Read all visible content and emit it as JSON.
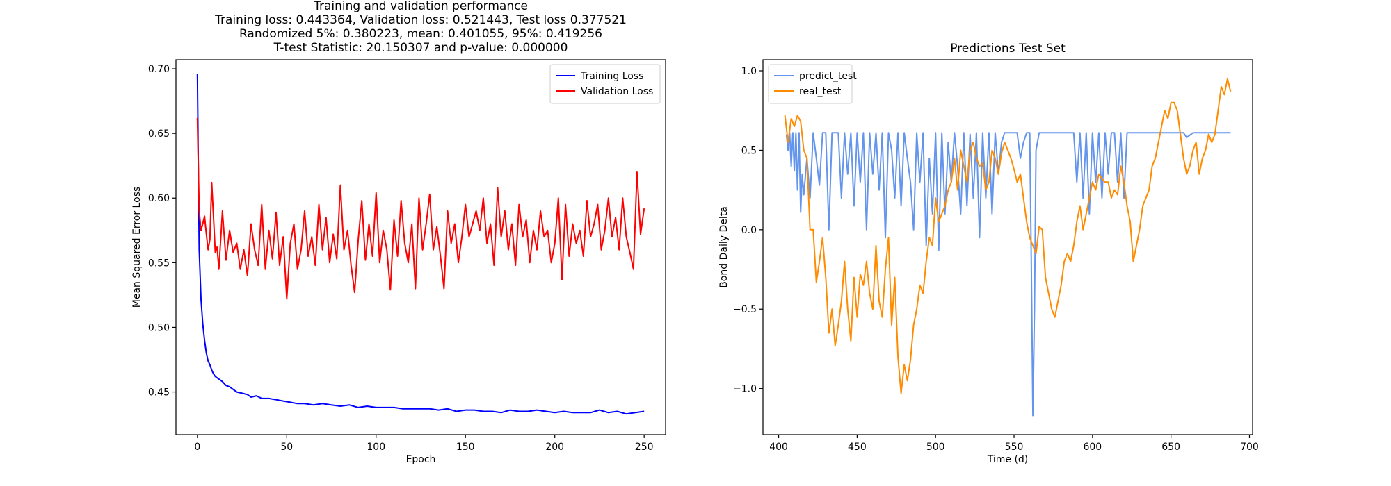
{
  "chart_data": [
    {
      "type": "line",
      "title_lines": [
        "Training and validation performance",
        "Training loss: 0.443364, Validation loss: 0.521443, Test loss 0.377521",
        "Randomized 5%: 0.380223, mean: 0.401055, 95%: 0.419256",
        "T-test Statistic: 20.150307 and p-value: 0.000000"
      ],
      "xlabel": "Epoch",
      "ylabel": "Mean Squared Error Loss",
      "xlim": [
        -12,
        262
      ],
      "ylim": [
        0.417,
        0.707
      ],
      "xticks": [
        0,
        50,
        100,
        150,
        200,
        250
      ],
      "xtick_labels": [
        "0",
        "50",
        "100",
        "150",
        "200",
        "250"
      ],
      "yticks": [
        0.45,
        0.5,
        0.55,
        0.6,
        0.65,
        0.7
      ],
      "ytick_labels": [
        "0.45",
        "0.50",
        "0.55",
        "0.60",
        "0.65",
        "0.70"
      ],
      "legend_position": "top-right",
      "series": [
        {
          "name": "Training Loss",
          "color": "#0000ff",
          "x": [
            0,
            1,
            2,
            3,
            4,
            5,
            6,
            7,
            8,
            9,
            10,
            12,
            14,
            16,
            18,
            20,
            22,
            25,
            28,
            30,
            33,
            36,
            40,
            44,
            48,
            52,
            56,
            60,
            65,
            70,
            75,
            80,
            85,
            90,
            95,
            100,
            105,
            110,
            115,
            120,
            125,
            130,
            135,
            140,
            145,
            150,
            155,
            160,
            165,
            170,
            175,
            180,
            185,
            190,
            195,
            200,
            205,
            210,
            215,
            220,
            225,
            230,
            235,
            240,
            245,
            250
          ],
          "y": [
            0.696,
            0.56,
            0.522,
            0.503,
            0.49,
            0.48,
            0.474,
            0.471,
            0.467,
            0.464,
            0.462,
            0.46,
            0.458,
            0.455,
            0.454,
            0.452,
            0.45,
            0.449,
            0.448,
            0.446,
            0.447,
            0.445,
            0.445,
            0.444,
            0.443,
            0.442,
            0.441,
            0.441,
            0.44,
            0.441,
            0.44,
            0.439,
            0.44,
            0.438,
            0.439,
            0.438,
            0.438,
            0.438,
            0.437,
            0.437,
            0.437,
            0.437,
            0.436,
            0.437,
            0.435,
            0.436,
            0.436,
            0.435,
            0.435,
            0.434,
            0.436,
            0.435,
            0.435,
            0.436,
            0.435,
            0.434,
            0.435,
            0.434,
            0.434,
            0.434,
            0.436,
            0.434,
            0.435,
            0.433,
            0.434,
            0.435
          ]
        },
        {
          "name": "Validation Loss",
          "color": "#ff0000",
          "x": [
            0,
            1,
            2,
            3,
            4,
            5,
            6,
            7,
            8,
            9,
            10,
            11,
            12,
            14,
            16,
            18,
            20,
            22,
            24,
            26,
            28,
            30,
            32,
            34,
            36,
            38,
            40,
            42,
            44,
            46,
            48,
            50,
            52,
            54,
            56,
            58,
            60,
            62,
            64,
            66,
            68,
            70,
            72,
            74,
            76,
            78,
            80,
            82,
            84,
            86,
            88,
            90,
            92,
            94,
            96,
            98,
            100,
            102,
            104,
            106,
            108,
            110,
            112,
            114,
            116,
            118,
            120,
            122,
            124,
            126,
            128,
            130,
            132,
            134,
            136,
            138,
            140,
            142,
            144,
            146,
            148,
            150,
            152,
            154,
            156,
            158,
            160,
            162,
            164,
            166,
            168,
            170,
            172,
            174,
            176,
            178,
            180,
            182,
            184,
            186,
            188,
            190,
            192,
            194,
            196,
            198,
            200,
            202,
            204,
            206,
            208,
            210,
            212,
            214,
            216,
            218,
            220,
            222,
            224,
            226,
            228,
            230,
            232,
            234,
            236,
            238,
            240,
            242,
            244,
            246,
            248,
            250
          ],
          "y": [
            0.662,
            0.59,
            0.575,
            0.58,
            0.586,
            0.572,
            0.56,
            0.568,
            0.612,
            0.585,
            0.558,
            0.562,
            0.545,
            0.59,
            0.552,
            0.575,
            0.558,
            0.565,
            0.545,
            0.56,
            0.54,
            0.58,
            0.56,
            0.548,
            0.595,
            0.545,
            0.575,
            0.553,
            0.589,
            0.548,
            0.57,
            0.522,
            0.565,
            0.58,
            0.545,
            0.56,
            0.59,
            0.555,
            0.57,
            0.548,
            0.595,
            0.56,
            0.585,
            0.55,
            0.572,
            0.553,
            0.61,
            0.56,
            0.575,
            0.548,
            0.527,
            0.568,
            0.598,
            0.552,
            0.58,
            0.555,
            0.604,
            0.55,
            0.575,
            0.56,
            0.529,
            0.583,
            0.555,
            0.598,
            0.565,
            0.55,
            0.58,
            0.53,
            0.6,
            0.56,
            0.58,
            0.603,
            0.56,
            0.578,
            0.555,
            0.53,
            0.59,
            0.565,
            0.58,
            0.55,
            0.57,
            0.595,
            0.57,
            0.58,
            0.59,
            0.575,
            0.6,
            0.565,
            0.58,
            0.548,
            0.608,
            0.57,
            0.59,
            0.56,
            0.58,
            0.548,
            0.595,
            0.57,
            0.583,
            0.55,
            0.575,
            0.56,
            0.59,
            0.57,
            0.575,
            0.55,
            0.565,
            0.6,
            0.537,
            0.595,
            0.555,
            0.58,
            0.565,
            0.575,
            0.555,
            0.598,
            0.57,
            0.58,
            0.595,
            0.56,
            0.575,
            0.6,
            0.57,
            0.585,
            0.56,
            0.6,
            0.57,
            0.558,
            0.545,
            0.62,
            0.572,
            0.592
          ]
        }
      ]
    },
    {
      "type": "line",
      "title": "Predictions Test Set",
      "xlabel": "Time (d)",
      "ylabel": "Bond Daily Delta",
      "xlim": [
        390,
        702
      ],
      "ylim": [
        -1.29,
        1.07
      ],
      "xticks": [
        400,
        450,
        500,
        550,
        600,
        650,
        700
      ],
      "xtick_labels": [
        "400",
        "450",
        "500",
        "550",
        "600",
        "650",
        "700"
      ],
      "yticks": [
        -1.0,
        -0.5,
        0.0,
        0.5,
        1.0
      ],
      "ytick_labels": [
        "−1.0",
        "−0.5",
        "0.0",
        "0.5",
        "1.0"
      ],
      "legend_position": "top-left",
      "series": [
        {
          "name": "predict_test",
          "color": "#6495ed",
          "x": [
            405,
            406,
            407,
            408,
            409,
            410,
            411,
            412,
            413,
            414,
            415,
            416,
            418,
            420,
            422,
            424,
            426,
            428,
            430,
            432,
            434,
            436,
            438,
            440,
            442,
            444,
            446,
            448,
            450,
            452,
            454,
            456,
            458,
            460,
            462,
            464,
            466,
            468,
            470,
            472,
            474,
            476,
            478,
            480,
            482,
            484,
            486,
            488,
            490,
            492,
            494,
            496,
            498,
            500,
            502,
            504,
            506,
            508,
            510,
            512,
            514,
            516,
            518,
            520,
            522,
            524,
            526,
            528,
            530,
            532,
            534,
            536,
            538,
            540,
            542,
            544,
            546,
            548,
            550,
            552,
            554,
            556,
            558,
            560,
            561,
            562,
            563,
            564,
            566,
            568,
            570,
            572,
            574,
            576,
            580,
            584,
            588,
            590,
            592,
            594,
            596,
            598,
            600,
            602,
            604,
            606,
            608,
            610,
            612,
            614,
            616,
            618,
            620,
            622,
            624,
            626,
            628,
            630,
            640,
            650,
            652,
            654,
            656,
            658,
            660,
            664,
            670,
            680,
            688
          ],
          "y": [
            0.6,
            0.5,
            0.61,
            0.4,
            0.61,
            0.37,
            0.61,
            0.25,
            0.61,
            0.11,
            0.35,
            0.22,
            0.45,
            0.2,
            0.61,
            0.45,
            0.28,
            0.61,
            0.61,
            0.0,
            0.61,
            0.61,
            0.61,
            0.2,
            0.61,
            0.35,
            0.61,
            0.15,
            0.61,
            0.3,
            0.61,
            0.0,
            0.61,
            0.35,
            0.61,
            0.25,
            0.61,
            -0.05,
            0.61,
            0.5,
            0.2,
            0.61,
            0.15,
            0.61,
            0.45,
            0.3,
            0.0,
            0.61,
            0.3,
            0.61,
            -0.1,
            0.45,
            0.1,
            0.61,
            -0.13,
            0.61,
            0.1,
            0.55,
            0.3,
            0.61,
            0.4,
            0.1,
            0.61,
            0.15,
            0.6,
            0.2,
            0.61,
            -0.05,
            0.61,
            0.2,
            0.61,
            0.1,
            0.61,
            0.35,
            0.55,
            0.61,
            0.61,
            0.61,
            0.61,
            0.61,
            0.45,
            0.55,
            0.61,
            0.61,
            -0.2,
            -1.17,
            -0.5,
            0.5,
            0.61,
            0.61,
            0.61,
            0.61,
            0.61,
            0.61,
            0.61,
            0.61,
            0.61,
            0.3,
            0.61,
            0.2,
            0.61,
            0.1,
            0.61,
            0.3,
            0.61,
            0.2,
            0.61,
            0.35,
            0.61,
            0.61,
            0.3,
            0.61,
            0.2,
            0.61,
            0.61,
            0.61,
            0.61,
            0.61,
            0.61,
            0.61,
            0.61,
            0.61,
            0.61,
            0.61,
            0.58,
            0.61,
            0.61,
            0.61,
            0.61
          ]
        },
        {
          "name": "real_test",
          "color": "#ff8c00",
          "x": [
            404,
            406,
            408,
            410,
            412,
            414,
            416,
            418,
            420,
            422,
            424,
            426,
            428,
            430,
            432,
            434,
            436,
            438,
            440,
            442,
            444,
            446,
            448,
            450,
            452,
            454,
            456,
            458,
            460,
            462,
            464,
            466,
            468,
            470,
            472,
            474,
            476,
            478,
            480,
            482,
            484,
            486,
            488,
            490,
            492,
            494,
            496,
            498,
            500,
            502,
            504,
            506,
            508,
            510,
            512,
            514,
            516,
            518,
            520,
            522,
            524,
            526,
            528,
            530,
            532,
            534,
            536,
            538,
            540,
            542,
            544,
            546,
            548,
            550,
            552,
            554,
            556,
            558,
            560,
            562,
            564,
            566,
            568,
            570,
            572,
            574,
            576,
            578,
            580,
            582,
            584,
            586,
            588,
            590,
            592,
            594,
            596,
            598,
            600,
            602,
            604,
            606,
            608,
            610,
            612,
            614,
            616,
            618,
            620,
            622,
            624,
            626,
            628,
            630,
            632,
            634,
            636,
            638,
            640,
            642,
            644,
            646,
            648,
            650,
            652,
            654,
            656,
            658,
            660,
            662,
            664,
            666,
            668,
            670,
            672,
            674,
            676,
            678,
            680,
            682,
            684,
            686,
            688
          ],
          "y": [
            0.72,
            0.55,
            0.7,
            0.65,
            0.72,
            0.68,
            0.5,
            0.45,
            0.0,
            0.0,
            -0.33,
            -0.2,
            -0.05,
            -0.3,
            -0.65,
            -0.5,
            -0.73,
            -0.6,
            -0.45,
            -0.2,
            -0.5,
            -0.7,
            -0.3,
            -0.55,
            -0.28,
            -0.35,
            -0.2,
            -0.4,
            -0.5,
            -0.1,
            -0.45,
            -0.55,
            -0.25,
            -0.05,
            -0.6,
            -0.3,
            -0.8,
            -1.03,
            -0.85,
            -0.95,
            -0.82,
            -0.6,
            -0.5,
            -0.35,
            -0.4,
            -0.2,
            -0.05,
            -0.1,
            0.2,
            0.05,
            0.1,
            0.15,
            0.25,
            0.3,
            0.45,
            0.25,
            0.5,
            0.4,
            0.3,
            0.5,
            0.55,
            0.45,
            0.4,
            0.42,
            0.25,
            0.3,
            0.5,
            0.45,
            0.35,
            0.48,
            0.55,
            0.5,
            0.45,
            0.38,
            0.3,
            0.35,
            0.2,
            0.05,
            -0.05,
            -0.1,
            -0.15,
            0.02,
            0.0,
            -0.3,
            -0.4,
            -0.5,
            -0.55,
            -0.45,
            -0.35,
            -0.2,
            -0.15,
            -0.2,
            -0.1,
            0.05,
            0.15,
            0.0,
            0.1,
            0.2,
            0.3,
            0.25,
            0.35,
            0.32,
            0.3,
            0.3,
            0.2,
            0.25,
            0.22,
            0.4,
            0.3,
            0.15,
            0.05,
            -0.2,
            -0.1,
            0.0,
            0.15,
            0.2,
            0.25,
            0.4,
            0.45,
            0.55,
            0.65,
            0.75,
            0.7,
            0.8,
            0.8,
            0.75,
            0.6,
            0.45,
            0.35,
            0.4,
            0.5,
            0.55,
            0.35,
            0.45,
            0.5,
            0.6,
            0.55,
            0.6,
            0.75,
            0.9,
            0.85,
            0.95,
            0.87
          ]
        }
      ]
    }
  ]
}
